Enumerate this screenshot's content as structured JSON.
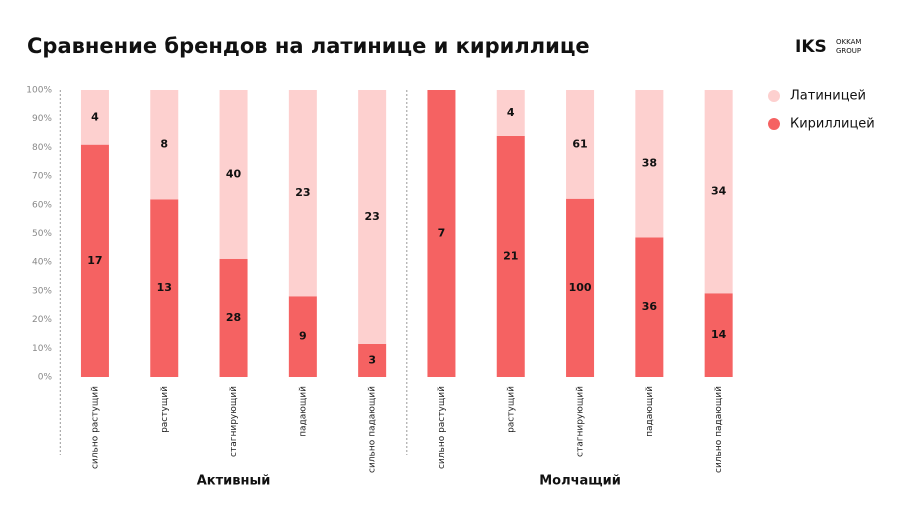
{
  "logo": {
    "mark": "IKS",
    "line1": "OKKAM",
    "line2": "GROUP"
  },
  "chart_data": {
    "type": "bar",
    "stack": "percent",
    "title": "Сравнение брендов на латинице и кириллице",
    "categories": [
      "сильно растущий",
      "растущий",
      "стагнирующий",
      "падающий",
      "сильно падающий",
      "сильно растущий",
      "растущий",
      "стагнирующий",
      "падающий",
      "сильно падающий"
    ],
    "groups": [
      "Активный",
      "Молчащий"
    ],
    "series": [
      {
        "name": "Кириллицей",
        "color": "#f56262",
        "values": [
          17,
          13,
          28,
          9,
          3,
          7,
          21,
          100,
          36,
          14
        ]
      },
      {
        "name": "Латиницей",
        "color": "#fdd0cf",
        "values": [
          4,
          8,
          40,
          23,
          23,
          0,
          4,
          61,
          38,
          34
        ]
      }
    ],
    "ylim": [
      0,
      100
    ],
    "yticks": [
      {
        "value": 0,
        "label": "0%"
      },
      {
        "value": 10,
        "label": "10%"
      },
      {
        "value": 20,
        "label": "20%"
      },
      {
        "value": 30,
        "label": "30%"
      },
      {
        "value": 40,
        "label": "40%"
      },
      {
        "value": 50,
        "label": "50%"
      },
      {
        "value": 60,
        "label": "60%"
      },
      {
        "value": 70,
        "label": "70%"
      },
      {
        "value": 80,
        "label": "80%"
      },
      {
        "value": 90,
        "label": "90%"
      },
      {
        "value": 100,
        "label": "100%"
      }
    ],
    "legend": "top-right"
  }
}
